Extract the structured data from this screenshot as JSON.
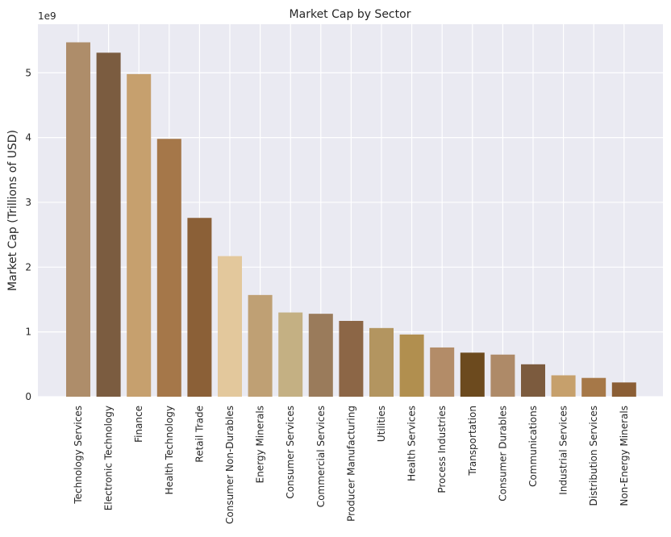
{
  "chart_data": {
    "type": "bar",
    "title": "Market Cap by Sector",
    "xlabel": "",
    "ylabel": "Market Cap (Trillions of USD)",
    "y_offset_label": "1e9",
    "ylim": [
      0,
      5.75
    ],
    "yticks": [
      0,
      1,
      2,
      3,
      4,
      5
    ],
    "grid": true,
    "categories": [
      "Technology Services",
      "Electronic Technology",
      "Finance",
      "Health Technology",
      "Retail Trade",
      "Consumer Non-Durables",
      "Energy Minerals",
      "Consumer Services",
      "Commercial Services",
      "Producer Manufacturing",
      "Utilities",
      "Health Services",
      "Process Industries",
      "Transportation",
      "Consumer Durables",
      "Communications",
      "Industrial Services",
      "Distribution Services",
      "Non-Energy Minerals"
    ],
    "values": [
      5.47,
      5.31,
      4.98,
      3.98,
      2.76,
      2.17,
      1.57,
      1.3,
      1.28,
      1.17,
      1.06,
      0.96,
      0.76,
      0.68,
      0.65,
      0.5,
      0.33,
      0.29,
      0.22
    ],
    "colors": [
      "#AE8D6A",
      "#7B5C40",
      "#C6A06E",
      "#A57749",
      "#8B6037",
      "#E3C89C",
      "#BFA074",
      "#C4B083",
      "#9A7B5B",
      "#8C6646",
      "#B39560",
      "#B18F4F",
      "#B38C68",
      "#6C4A1E",
      "#AE8A68",
      "#7C5B3E",
      "#C6A06C",
      "#A67848",
      "#8B5E35"
    ]
  }
}
